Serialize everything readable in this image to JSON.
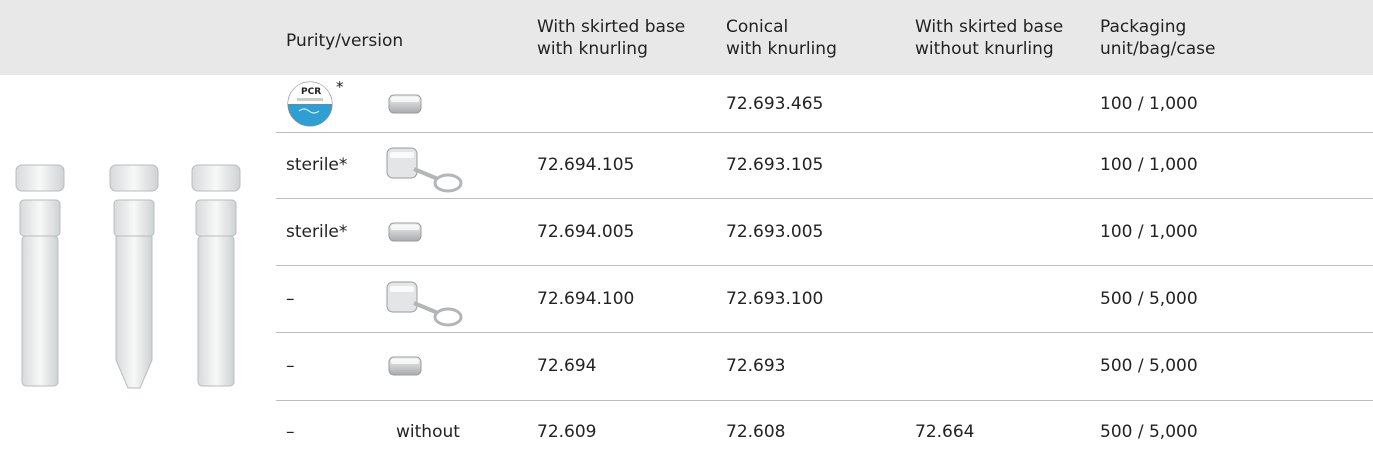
{
  "table": {
    "header": [
      "Purity/version",
      [
        "With skirted base",
        "with knurling"
      ],
      [
        "Conical",
        "with knurling"
      ],
      [
        "With skirted base",
        "without knurling"
      ],
      [
        "Packaging",
        "unit/bag/case"
      ]
    ],
    "rows": [
      {
        "badge": "PCR",
        "badge_mark": "*",
        "conical": "72.693.465",
        "packaging": "100 / 1,000"
      },
      {
        "purity": "sterile*",
        "skirted": "72.694.105",
        "conical": "72.693.105",
        "packaging": "100 / 1,000"
      },
      {
        "purity": "sterile*",
        "skirted": "72.694.005",
        "conical": "72.693.005",
        "packaging": "100 / 1,000"
      },
      {
        "purity": "–",
        "skirted": "72.694.100",
        "conical": "72.693.100",
        "packaging": "500 / 5,000"
      },
      {
        "purity": "–",
        "skirted": "72.694",
        "conical": "72.693",
        "packaging": "500 / 5,000"
      },
      {
        "purity": "–",
        "version": "without",
        "skirted": "72.609",
        "conical": "72.608",
        "skirted_without": "72.664",
        "packaging": "500 / 5,000"
      }
    ]
  }
}
